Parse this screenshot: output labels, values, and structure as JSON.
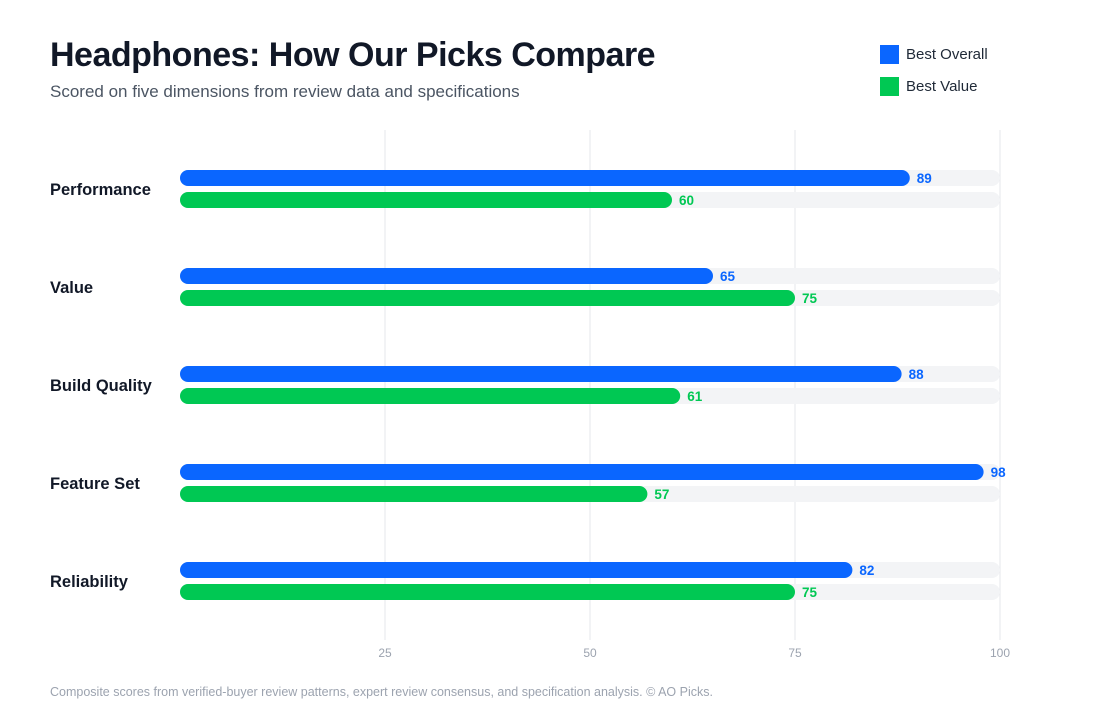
{
  "title": "Headphones: How Our Picks Compare",
  "subtitle": "Scored on five dimensions from review data and specifications",
  "footer": "Composite scores from verified-buyer review patterns, expert review consensus, and specification analysis. © AO Picks.",
  "colors": {
    "best_overall": "#0a66ff",
    "best_value": "#00c853",
    "track": "#f3f4f6",
    "grid": "#e5e7eb",
    "category_text": "#111827",
    "tick_text": "#9ca3af"
  },
  "legend": [
    {
      "label": "Best Overall",
      "color": "#0a66ff"
    },
    {
      "label": "Best Value",
      "color": "#00c853"
    }
  ],
  "chart_data": {
    "type": "bar",
    "orientation": "horizontal",
    "categories": [
      "Performance",
      "Value",
      "Build Quality",
      "Feature Set",
      "Reliability"
    ],
    "series": [
      {
        "name": "Best Overall",
        "color": "#0a66ff",
        "values": [
          89,
          65,
          88,
          98,
          82
        ]
      },
      {
        "name": "Best Value",
        "color": "#00c853",
        "values": [
          60,
          75,
          61,
          57,
          75
        ]
      }
    ],
    "xlim": [
      0,
      100
    ],
    "xticks": [
      25,
      50,
      75,
      100
    ],
    "grid": true,
    "legend_position": "top-right",
    "data_labels": true
  }
}
